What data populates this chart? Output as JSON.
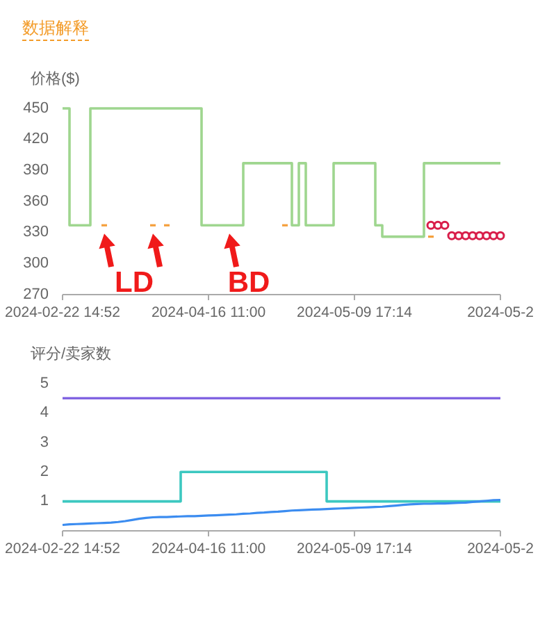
{
  "chart_data": [
    {
      "type": "step",
      "title": "数据解释",
      "ylabel": "价格($)",
      "categories": [
        "2024-02-22 14:52",
        null,
        null,
        null,
        null,
        null,
        null,
        null,
        null,
        null,
        null,
        null,
        null,
        null,
        null,
        null,
        null,
        null,
        null,
        null,
        null,
        "2024-04-16 11:00",
        null,
        null,
        null,
        null,
        null,
        null,
        null,
        null,
        null,
        null,
        null,
        null,
        null,
        null,
        null,
        null,
        null,
        null,
        null,
        null,
        "2024-05-09 17:14",
        null,
        null,
        null,
        null,
        null,
        null,
        null,
        null,
        null,
        null,
        null,
        null,
        null,
        null,
        null,
        null,
        null,
        null,
        null,
        null,
        "2024-05-2"
      ],
      "ylim": [
        270,
        450
      ],
      "yticks": [
        270,
        300,
        330,
        360,
        390,
        420,
        450
      ],
      "series": [
        {
          "color": "#9fd68f",
          "values": [
            450,
            337,
            337,
            337,
            450,
            450,
            450,
            450,
            450,
            450,
            450,
            450,
            450,
            450,
            450,
            450,
            450,
            450,
            450,
            450,
            337,
            337,
            337,
            337,
            337,
            337,
            397,
            397,
            397,
            397,
            397,
            397,
            397,
            337,
            397,
            337,
            337,
            337,
            337,
            397,
            397,
            397,
            397,
            397,
            397,
            337,
            326,
            326,
            326,
            326,
            326,
            326,
            397,
            397,
            397,
            397,
            397,
            397,
            397,
            397,
            397,
            397,
            397,
            397
          ]
        },
        {
          "type": "scatter",
          "marker": "square",
          "color": "#f5a03c",
          "values": [
            null,
            null,
            null,
            null,
            null,
            null,
            337,
            null,
            null,
            null,
            null,
            null,
            null,
            337,
            null,
            337,
            null,
            null,
            null,
            null,
            null,
            null,
            null,
            null,
            null,
            null,
            null,
            null,
            null,
            null,
            null,
            null,
            337,
            null,
            null,
            null,
            null,
            null,
            null,
            null,
            null,
            null,
            null,
            null,
            null,
            null,
            null,
            null,
            null,
            null,
            null,
            null,
            null,
            326,
            null,
            null,
            null,
            null,
            null,
            null,
            null,
            null,
            null,
            null
          ]
        },
        {
          "type": "scatter",
          "marker": "circle",
          "color": "#d81e4a",
          "values": [
            null,
            null,
            null,
            null,
            null,
            null,
            null,
            null,
            null,
            null,
            null,
            null,
            null,
            null,
            null,
            null,
            null,
            null,
            null,
            null,
            null,
            null,
            null,
            null,
            null,
            null,
            null,
            null,
            null,
            null,
            null,
            null,
            null,
            null,
            null,
            null,
            null,
            null,
            null,
            null,
            null,
            null,
            null,
            null,
            null,
            null,
            null,
            null,
            null,
            null,
            null,
            null,
            null,
            337,
            337,
            337,
            327,
            327,
            327,
            327,
            327,
            327,
            327,
            327
          ]
        }
      ],
      "annotations": [
        "LD",
        "BD"
      ]
    },
    {
      "type": "line",
      "ylabel": "评分/卖家数",
      "categories": [
        "2024-02-22 14:52",
        null,
        null,
        null,
        null,
        null,
        null,
        null,
        null,
        null,
        null,
        null,
        null,
        null,
        null,
        null,
        null,
        null,
        null,
        null,
        null,
        "2024-04-16 11:00",
        null,
        null,
        null,
        null,
        null,
        null,
        null,
        null,
        null,
        null,
        null,
        null,
        null,
        null,
        null,
        null,
        null,
        null,
        null,
        null,
        "2024-05-09 17:14",
        null,
        null,
        null,
        null,
        null,
        null,
        null,
        null,
        null,
        null,
        null,
        null,
        null,
        null,
        null,
        null,
        null,
        null,
        null,
        null,
        "2024-05-2"
      ],
      "ylim": [
        0,
        5
      ],
      "yticks": [
        1,
        2,
        3,
        4,
        5
      ],
      "series": [
        {
          "color": "#7b5ce0",
          "values": [
            4.5,
            4.5,
            4.5,
            4.5,
            4.5,
            4.5,
            4.5,
            4.5,
            4.5,
            4.5,
            4.5,
            4.5,
            4.5,
            4.5,
            4.5,
            4.5,
            4.5,
            4.5,
            4.5,
            4.5,
            4.5,
            4.5,
            4.5,
            4.5,
            4.5,
            4.5,
            4.5,
            4.5,
            4.5,
            4.5,
            4.5,
            4.5,
            4.5,
            4.5,
            4.5,
            4.5,
            4.5,
            4.5,
            4.5,
            4.5,
            4.5,
            4.5,
            4.5,
            4.5,
            4.5,
            4.5,
            4.5,
            4.5,
            4.5,
            4.5,
            4.5,
            4.5,
            4.5,
            4.5,
            4.5,
            4.5,
            4.5,
            4.5,
            4.5,
            4.5,
            4.5,
            4.5,
            4.5,
            4.5
          ]
        },
        {
          "type": "step",
          "color": "#3cc8c0",
          "values": [
            1,
            1,
            1,
            1,
            1,
            1,
            1,
            1,
            1,
            1,
            1,
            1,
            1,
            1,
            1,
            1,
            1,
            2,
            2,
            2,
            2,
            2,
            2,
            2,
            2,
            2,
            2,
            2,
            2,
            2,
            2,
            2,
            2,
            2,
            2,
            2,
            2,
            2,
            1,
            1,
            1,
            1,
            1,
            1,
            1,
            1,
            1,
            1,
            1,
            1,
            1,
            1,
            1,
            1,
            1,
            1,
            1,
            1,
            1,
            1,
            1,
            1,
            1,
            1
          ]
        },
        {
          "color": "#3b8cf0",
          "values": [
            0.2,
            0.22,
            0.23,
            0.24,
            0.25,
            0.26,
            0.27,
            0.28,
            0.3,
            0.33,
            0.37,
            0.41,
            0.44,
            0.46,
            0.47,
            0.47,
            0.48,
            0.49,
            0.5,
            0.5,
            0.51,
            0.52,
            0.53,
            0.54,
            0.55,
            0.56,
            0.58,
            0.59,
            0.61,
            0.62,
            0.64,
            0.65,
            0.67,
            0.69,
            0.7,
            0.71,
            0.72,
            0.73,
            0.74,
            0.75,
            0.76,
            0.77,
            0.78,
            0.79,
            0.8,
            0.81,
            0.82,
            0.84,
            0.86,
            0.88,
            0.9,
            0.91,
            0.92,
            0.92,
            0.93,
            0.93,
            0.94,
            0.95,
            0.96,
            0.98,
            1.0,
            1.02,
            1.04,
            1.05
          ]
        }
      ]
    }
  ]
}
